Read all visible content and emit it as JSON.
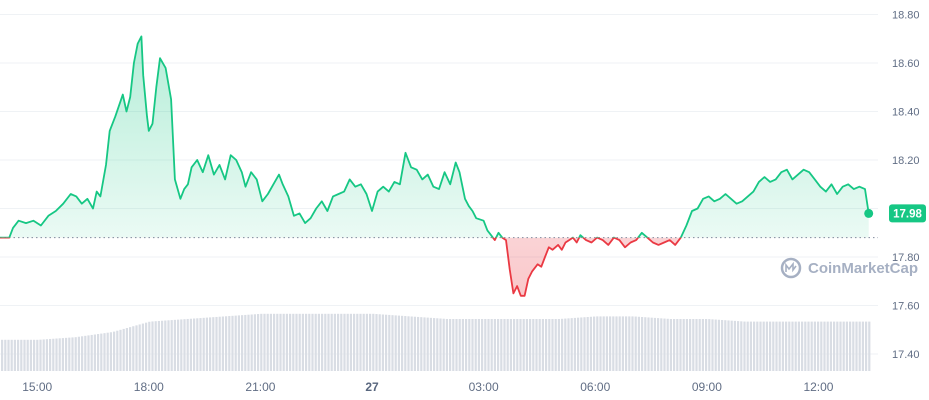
{
  "chart_data": {
    "type": "area",
    "y_axis_side": "right",
    "ylim": [
      17.33,
      18.86
    ],
    "yticks": [
      "18.80",
      "18.60",
      "18.40",
      "18.20",
      "18.00",
      "17.80",
      "17.60",
      "17.40"
    ],
    "x_domain": [
      14,
      37.6
    ],
    "xticks": [
      {
        "label": "15:00",
        "x": 15
      },
      {
        "label": "18:00",
        "x": 18
      },
      {
        "label": "21:00",
        "x": 21
      },
      {
        "label": "27",
        "x": 24,
        "bold": true
      },
      {
        "label": "03:00",
        "x": 27
      },
      {
        "label": "06:00",
        "x": 30
      },
      {
        "label": "09:00",
        "x": 33
      },
      {
        "label": "12:00",
        "x": 36
      }
    ],
    "baseline": 17.88,
    "current_price": "17.98",
    "colors": {
      "up": "#16c784",
      "down": "#ea3943",
      "volume": "#d9dde4",
      "grid": "#eff2f5",
      "baseline": "#808a9d"
    },
    "series": [
      {
        "x": [
          14.0,
          14.25,
          14.35,
          14.5,
          14.7,
          14.9,
          15.1,
          15.3,
          15.5,
          15.7,
          15.9,
          16.05,
          16.2,
          16.35,
          16.5,
          16.6,
          16.7,
          16.85,
          16.95,
          17.1,
          17.3,
          17.4,
          17.5,
          17.6,
          17.7,
          17.8,
          17.85,
          17.95,
          18.0,
          18.1,
          18.2,
          18.3,
          18.45,
          18.6,
          18.7,
          18.85,
          18.95,
          19.05,
          19.15,
          19.3,
          19.45,
          19.6,
          19.75,
          19.9,
          20.05,
          20.2,
          20.35,
          20.5,
          20.6,
          20.75,
          20.9,
          21.05,
          21.2,
          21.35,
          21.5,
          21.6,
          21.75,
          21.9,
          22.05,
          22.2,
          22.35,
          22.5,
          22.65,
          22.8,
          22.95,
          23.1,
          23.25,
          23.4,
          23.55,
          23.7,
          23.85,
          24.0,
          24.15,
          24.3,
          24.45,
          24.6,
          24.75,
          24.9,
          25.05,
          25.2,
          25.35,
          25.5,
          25.65,
          25.8,
          25.95,
          26.1,
          26.25,
          26.35,
          26.5,
          26.6,
          26.7,
          26.8,
          27.0,
          27.1,
          27.2,
          27.3,
          27.4,
          27.5,
          27.6,
          27.7,
          27.8,
          27.9,
          28.0,
          28.1,
          28.2,
          28.3,
          28.45,
          28.55,
          28.65,
          28.75,
          28.85,
          29.0,
          29.1,
          29.2,
          29.3,
          29.4,
          29.5,
          29.6,
          29.75,
          29.9,
          30.05,
          30.2,
          30.35,
          30.5,
          30.65,
          30.8,
          30.95,
          31.1,
          31.25,
          31.4,
          31.55,
          31.7,
          31.85,
          32.0,
          32.15,
          32.3,
          32.45,
          32.6,
          32.75,
          32.9,
          33.05,
          33.2,
          33.35,
          33.5,
          33.65,
          33.8,
          33.95,
          34.1,
          34.25,
          34.4,
          34.55,
          34.7,
          34.85,
          35.0,
          35.15,
          35.3,
          35.45,
          35.6,
          35.75,
          35.9,
          36.05,
          36.2,
          36.35,
          36.5,
          36.65,
          36.8,
          36.95,
          37.1,
          37.25,
          37.35
        ],
        "y": [
          17.88,
          17.88,
          17.92,
          17.95,
          17.94,
          17.95,
          17.93,
          17.97,
          17.99,
          18.02,
          18.06,
          18.05,
          18.02,
          18.04,
          18.0,
          18.07,
          18.05,
          18.18,
          18.32,
          18.38,
          18.47,
          18.4,
          18.46,
          18.6,
          18.68,
          18.71,
          18.55,
          18.38,
          18.32,
          18.35,
          18.5,
          18.62,
          18.58,
          18.45,
          18.12,
          18.04,
          18.08,
          18.1,
          18.17,
          18.2,
          18.15,
          18.22,
          18.14,
          18.18,
          18.12,
          18.22,
          18.2,
          18.15,
          18.09,
          18.15,
          18.12,
          18.03,
          18.06,
          18.1,
          18.14,
          18.1,
          18.05,
          17.97,
          17.98,
          17.94,
          17.96,
          18.0,
          18.03,
          17.99,
          18.05,
          18.06,
          18.07,
          18.12,
          18.09,
          18.1,
          18.06,
          17.99,
          18.07,
          18.09,
          18.07,
          18.11,
          18.1,
          18.23,
          18.17,
          18.16,
          18.12,
          18.14,
          18.09,
          18.08,
          18.15,
          18.1,
          18.19,
          18.15,
          18.04,
          18.01,
          17.99,
          17.96,
          17.95,
          17.91,
          17.89,
          17.87,
          17.9,
          17.88,
          17.87,
          17.75,
          17.65,
          17.68,
          17.64,
          17.64,
          17.71,
          17.74,
          17.77,
          17.76,
          17.8,
          17.84,
          17.83,
          17.85,
          17.83,
          17.86,
          17.87,
          17.88,
          17.86,
          17.89,
          17.87,
          17.86,
          17.88,
          17.87,
          17.85,
          17.88,
          17.87,
          17.84,
          17.86,
          17.87,
          17.9,
          17.88,
          17.86,
          17.85,
          17.86,
          17.87,
          17.85,
          17.88,
          17.93,
          17.99,
          18.0,
          18.04,
          18.05,
          18.03,
          18.04,
          18.06,
          18.04,
          18.02,
          18.03,
          18.05,
          18.07,
          18.11,
          18.13,
          18.11,
          18.12,
          18.15,
          18.16,
          18.12,
          18.14,
          18.16,
          18.15,
          18.12,
          18.09,
          18.07,
          18.1,
          18.06,
          18.09,
          18.1,
          18.08,
          18.09,
          18.08,
          17.98
        ]
      }
    ],
    "volume": {
      "x": [
        14.0,
        15.0,
        16.0,
        17.0,
        18.0,
        19.0,
        20.0,
        21.0,
        22.0,
        23.0,
        24.0,
        25.0,
        26.0,
        27.0,
        28.0,
        29.0,
        30.0,
        31.0,
        32.0,
        33.0,
        34.0,
        35.0,
        36.0,
        37.0,
        37.35
      ],
      "level": [
        0.12,
        0.12,
        0.13,
        0.15,
        0.19,
        0.2,
        0.21,
        0.22,
        0.22,
        0.22,
        0.22,
        0.21,
        0.2,
        0.2,
        0.2,
        0.2,
        0.21,
        0.21,
        0.2,
        0.2,
        0.19,
        0.19,
        0.19,
        0.19,
        0.19
      ]
    },
    "watermark": "CoinMarketCap"
  }
}
